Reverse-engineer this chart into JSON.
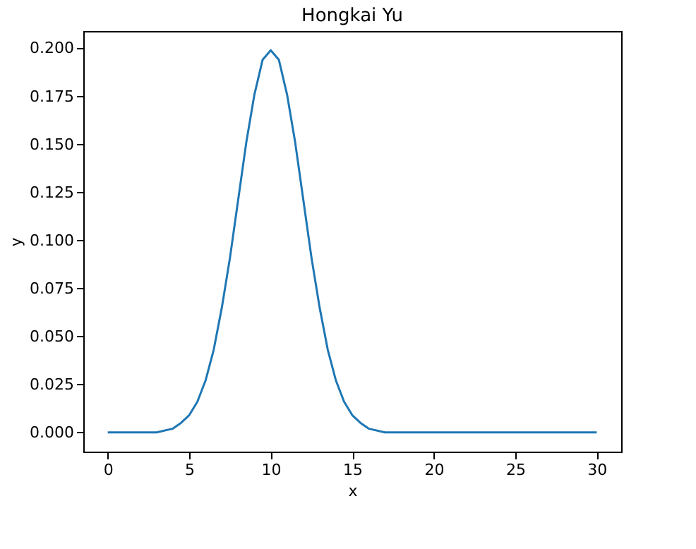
{
  "chart_data": {
    "type": "line",
    "title": "Hongkai Yu",
    "xlabel": "x",
    "ylabel": "y",
    "x": [
      0,
      2,
      3,
      4,
      4.5,
      5,
      5.5,
      6,
      6.5,
      7,
      7.5,
      8,
      8.5,
      9,
      9.5,
      10,
      10.5,
      11,
      11.5,
      12,
      12.5,
      13,
      13.5,
      14,
      14.5,
      15,
      15.5,
      16,
      17,
      18,
      20,
      25,
      30
    ],
    "series": [
      {
        "color": "#1f77b4",
        "values": [
          0.0,
          0.0,
          0.0,
          0.002,
          0.005,
          0.009,
          0.016,
          0.027,
          0.043,
          0.065,
          0.091,
          0.121,
          0.151,
          0.176,
          0.194,
          0.199,
          0.194,
          0.176,
          0.151,
          0.121,
          0.091,
          0.065,
          0.043,
          0.027,
          0.016,
          0.009,
          0.005,
          0.002,
          0.0,
          0.0,
          0.0,
          0.0,
          0.0
        ]
      }
    ],
    "xlim": [
      -1.5,
      31.5
    ],
    "ylim": [
      -0.01,
      0.209
    ],
    "xticks": [
      0,
      5,
      10,
      15,
      20,
      25,
      30
    ],
    "yticks": [
      {
        "value": 0,
        "label": "0.000"
      },
      {
        "value": 0.025,
        "label": "0.025"
      },
      {
        "value": 0.05,
        "label": "0.050"
      },
      {
        "value": 0.075,
        "label": "0.075"
      },
      {
        "value": 0.1,
        "label": "0.100"
      },
      {
        "value": 0.125,
        "label": "0.125"
      },
      {
        "value": 0.15,
        "label": "0.150"
      },
      {
        "value": 0.175,
        "label": "0.175"
      },
      {
        "value": 0.2,
        "label": "0.200"
      }
    ],
    "grid": false
  }
}
